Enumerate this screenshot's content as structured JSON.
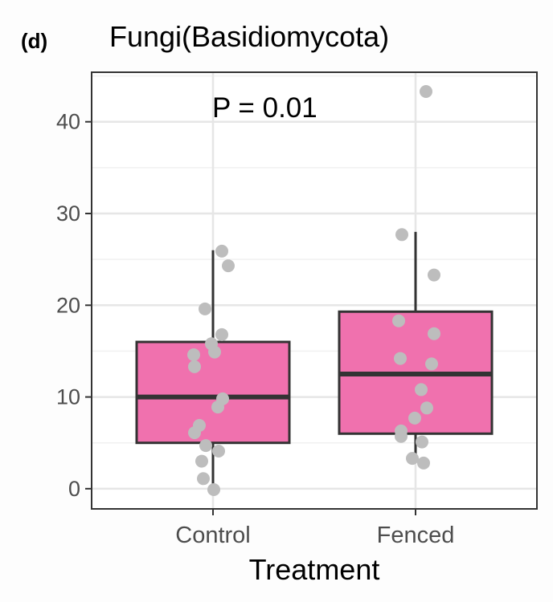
{
  "panel_tag": "(d)",
  "chart_data": {
    "type": "box",
    "title": "Fungi(Basidiomycota)",
    "xlabel": "Treatment",
    "ylabel": "",
    "annotation": "P = 0.01",
    "categories": [
      "Control",
      "Fenced"
    ],
    "ylim": [
      -2.2,
      45.4
    ],
    "yticks": [
      0,
      10,
      20,
      30,
      40
    ],
    "ytick_labels": [
      "0",
      "10",
      "20",
      "30",
      "40"
    ],
    "grid": true,
    "box_fill": "#f071ae",
    "box_stroke": "#333333",
    "point_color": "#bdbdbd",
    "boxes": [
      {
        "name": "Control",
        "lower_whisker": 0,
        "q1": 5,
        "median": 10,
        "q3": 16,
        "upper_whisker": 26
      },
      {
        "name": "Fenced",
        "lower_whisker": 3,
        "q1": 6,
        "median": 12.5,
        "q3": 19.3,
        "upper_whisker": 28
      }
    ],
    "points": [
      {
        "group": "Control",
        "values": [
          25.9,
          24.3,
          19.6,
          16.8,
          15.8,
          14.9,
          14.6,
          13.3,
          9.8,
          8.9,
          6.9,
          6.1,
          4.7,
          4.1,
          3.0,
          1.1,
          -0.1
        ]
      },
      {
        "group": "Fenced",
        "values": [
          43.3,
          27.7,
          23.3,
          18.3,
          16.9,
          14.2,
          13.6,
          10.8,
          8.8,
          7.7,
          6.3,
          5.7,
          5.1,
          3.3,
          2.8
        ]
      }
    ]
  }
}
